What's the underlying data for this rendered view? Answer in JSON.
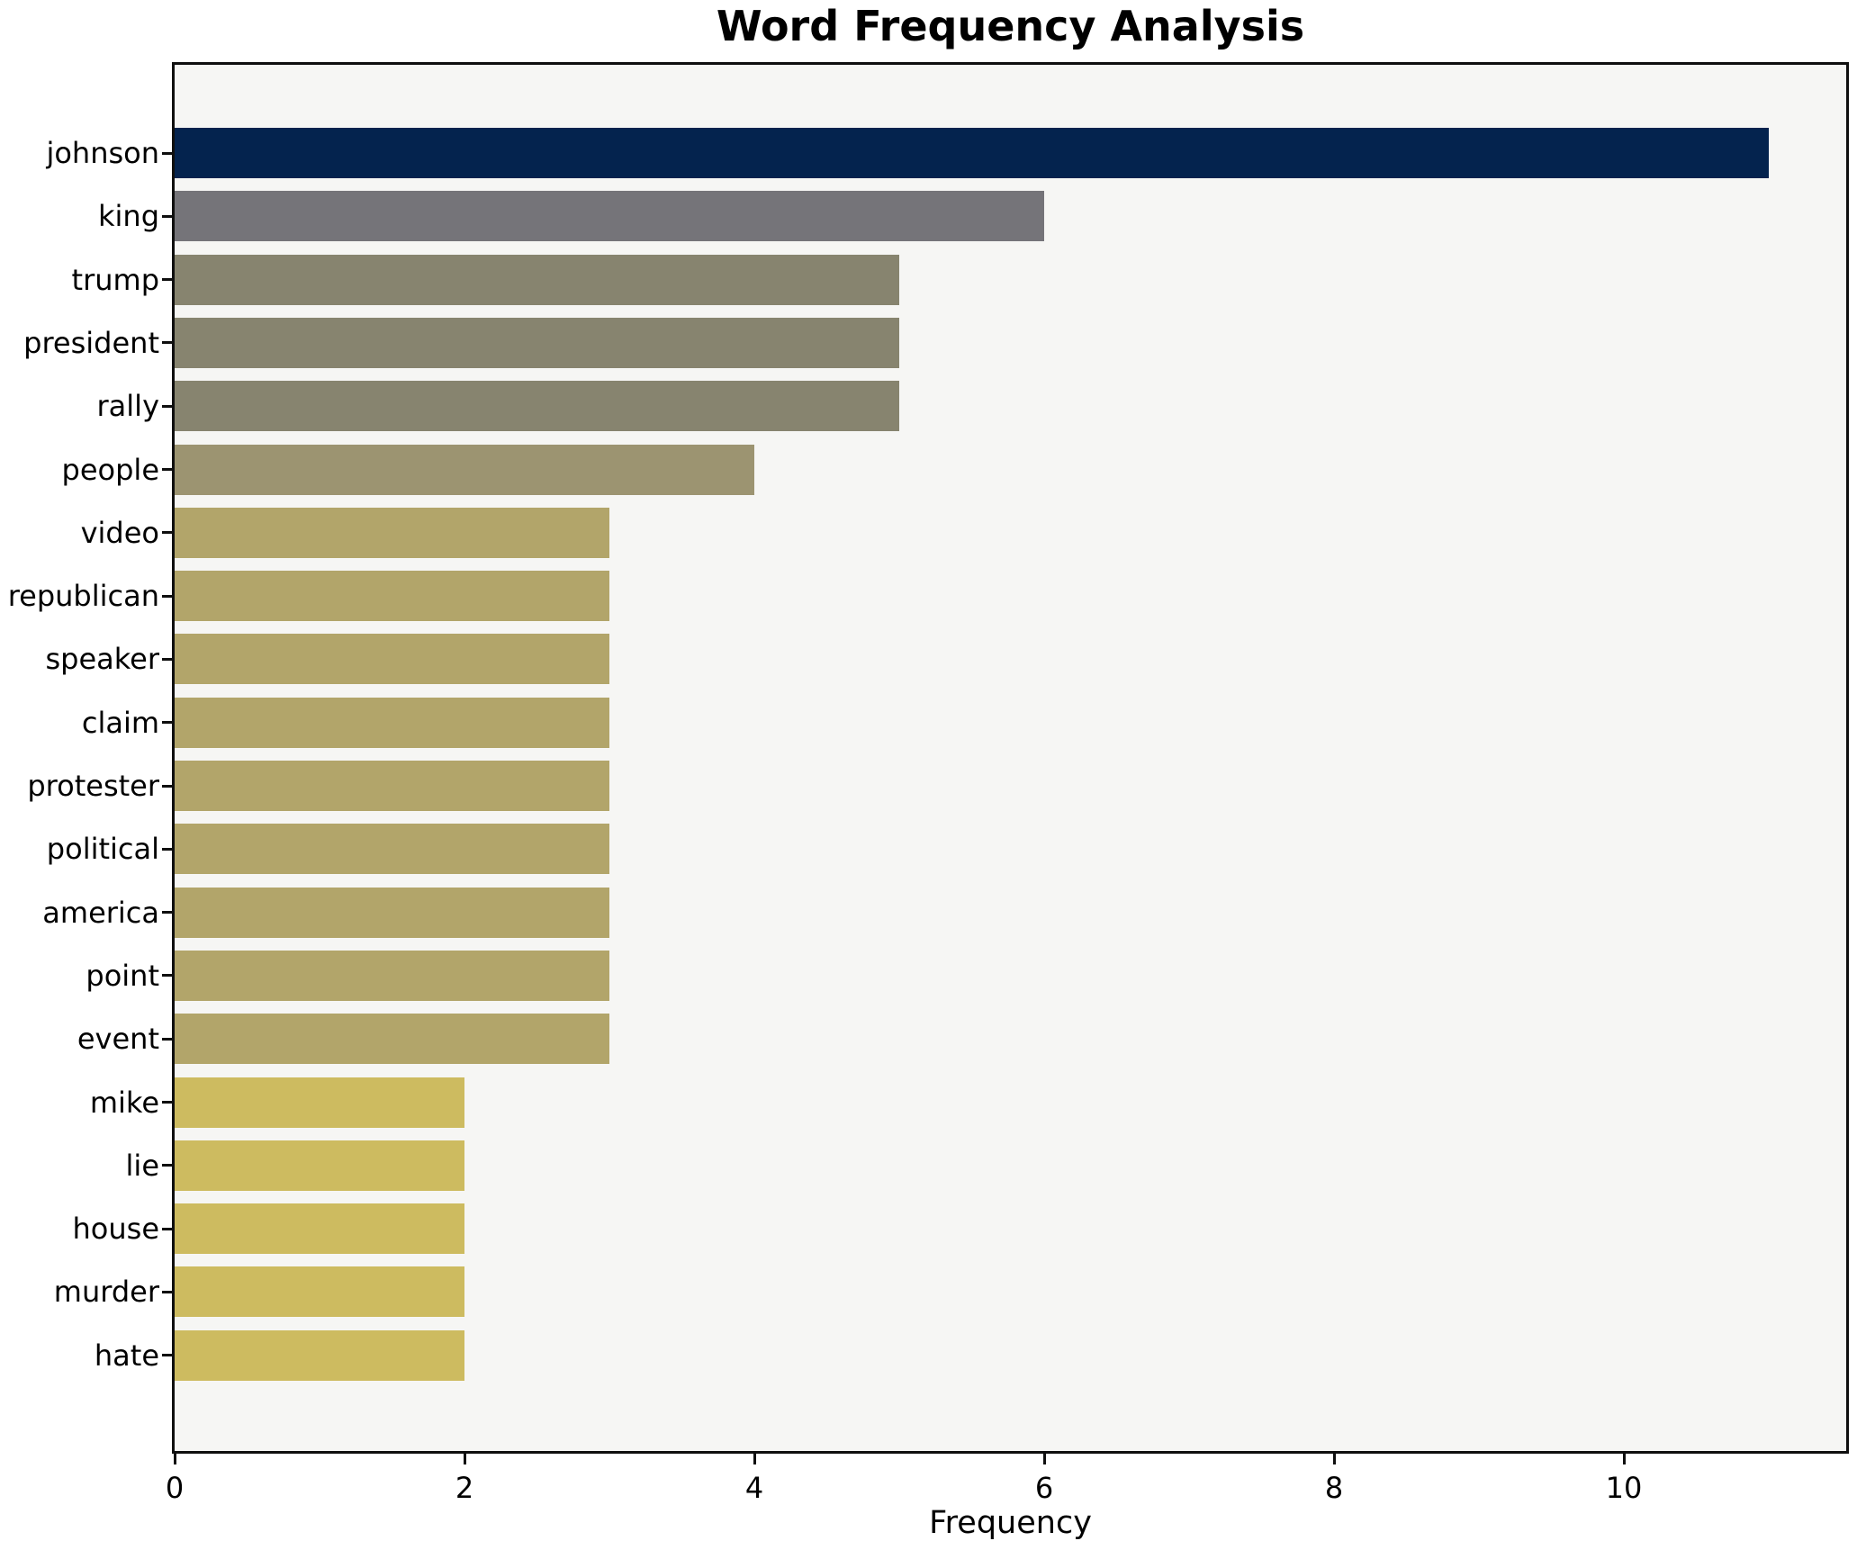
{
  "chart_data": {
    "type": "bar",
    "orientation": "horizontal",
    "title": "Word Frequency Analysis",
    "xlabel": "Frequency",
    "ylabel": "",
    "categories": [
      "johnson",
      "king",
      "trump",
      "president",
      "rally",
      "people",
      "video",
      "republican",
      "speaker",
      "claim",
      "protester",
      "political",
      "america",
      "point",
      "event",
      "mike",
      "lie",
      "house",
      "murder",
      "hate"
    ],
    "values": [
      11,
      6,
      5,
      5,
      5,
      4,
      3,
      3,
      3,
      3,
      3,
      3,
      3,
      3,
      3,
      2,
      2,
      2,
      2,
      2
    ],
    "bar_colors": [
      "#04234e",
      "#757479",
      "#87846f",
      "#87846f",
      "#87846f",
      "#9c9471",
      "#b2a56a",
      "#b2a56a",
      "#b2a56a",
      "#b2a56a",
      "#b2a56a",
      "#b2a56a",
      "#b2a56a",
      "#b2a56a",
      "#b2a56a",
      "#cdbb60",
      "#cdbb60",
      "#cdbb60",
      "#cdbb60",
      "#cdbb60"
    ],
    "x_ticks": [
      0,
      2,
      4,
      6,
      8,
      10
    ],
    "xlim": [
      0,
      11.53
    ],
    "grid": false,
    "legend": false,
    "colors": {
      "figure_bg": "#ffffff",
      "plot_bg": "#f6f6f4",
      "axis": "#0f0f0f",
      "text": "#000000"
    }
  }
}
